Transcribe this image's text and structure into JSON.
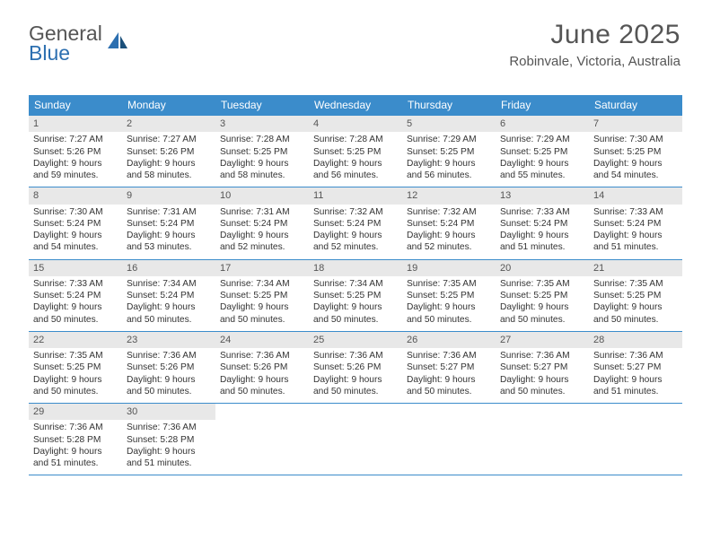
{
  "logo": {
    "word1": "General",
    "word2": "Blue"
  },
  "title": "June 2025",
  "location": "Robinvale, Victoria, Australia",
  "colors": {
    "header_bg": "#3b8ccb",
    "header_text": "#ffffff",
    "daynum_bg": "#e8e8e8",
    "border": "#3b8ccb",
    "text": "#333333",
    "logo_gray": "#555555",
    "logo_blue": "#2c6fb0"
  },
  "dayNames": [
    "Sunday",
    "Monday",
    "Tuesday",
    "Wednesday",
    "Thursday",
    "Friday",
    "Saturday"
  ],
  "weeks": [
    [
      {
        "n": "1",
        "sr": "7:27 AM",
        "ss": "5:26 PM",
        "dl": "9 hours and 59 minutes."
      },
      {
        "n": "2",
        "sr": "7:27 AM",
        "ss": "5:26 PM",
        "dl": "9 hours and 58 minutes."
      },
      {
        "n": "3",
        "sr": "7:28 AM",
        "ss": "5:25 PM",
        "dl": "9 hours and 58 minutes."
      },
      {
        "n": "4",
        "sr": "7:28 AM",
        "ss": "5:25 PM",
        "dl": "9 hours and 56 minutes."
      },
      {
        "n": "5",
        "sr": "7:29 AM",
        "ss": "5:25 PM",
        "dl": "9 hours and 56 minutes."
      },
      {
        "n": "6",
        "sr": "7:29 AM",
        "ss": "5:25 PM",
        "dl": "9 hours and 55 minutes."
      },
      {
        "n": "7",
        "sr": "7:30 AM",
        "ss": "5:25 PM",
        "dl": "9 hours and 54 minutes."
      }
    ],
    [
      {
        "n": "8",
        "sr": "7:30 AM",
        "ss": "5:24 PM",
        "dl": "9 hours and 54 minutes."
      },
      {
        "n": "9",
        "sr": "7:31 AM",
        "ss": "5:24 PM",
        "dl": "9 hours and 53 minutes."
      },
      {
        "n": "10",
        "sr": "7:31 AM",
        "ss": "5:24 PM",
        "dl": "9 hours and 52 minutes."
      },
      {
        "n": "11",
        "sr": "7:32 AM",
        "ss": "5:24 PM",
        "dl": "9 hours and 52 minutes."
      },
      {
        "n": "12",
        "sr": "7:32 AM",
        "ss": "5:24 PM",
        "dl": "9 hours and 52 minutes."
      },
      {
        "n": "13",
        "sr": "7:33 AM",
        "ss": "5:24 PM",
        "dl": "9 hours and 51 minutes."
      },
      {
        "n": "14",
        "sr": "7:33 AM",
        "ss": "5:24 PM",
        "dl": "9 hours and 51 minutes."
      }
    ],
    [
      {
        "n": "15",
        "sr": "7:33 AM",
        "ss": "5:24 PM",
        "dl": "9 hours and 50 minutes."
      },
      {
        "n": "16",
        "sr": "7:34 AM",
        "ss": "5:24 PM",
        "dl": "9 hours and 50 minutes."
      },
      {
        "n": "17",
        "sr": "7:34 AM",
        "ss": "5:25 PM",
        "dl": "9 hours and 50 minutes."
      },
      {
        "n": "18",
        "sr": "7:34 AM",
        "ss": "5:25 PM",
        "dl": "9 hours and 50 minutes."
      },
      {
        "n": "19",
        "sr": "7:35 AM",
        "ss": "5:25 PM",
        "dl": "9 hours and 50 minutes."
      },
      {
        "n": "20",
        "sr": "7:35 AM",
        "ss": "5:25 PM",
        "dl": "9 hours and 50 minutes."
      },
      {
        "n": "21",
        "sr": "7:35 AM",
        "ss": "5:25 PM",
        "dl": "9 hours and 50 minutes."
      }
    ],
    [
      {
        "n": "22",
        "sr": "7:35 AM",
        "ss": "5:25 PM",
        "dl": "9 hours and 50 minutes."
      },
      {
        "n": "23",
        "sr": "7:36 AM",
        "ss": "5:26 PM",
        "dl": "9 hours and 50 minutes."
      },
      {
        "n": "24",
        "sr": "7:36 AM",
        "ss": "5:26 PM",
        "dl": "9 hours and 50 minutes."
      },
      {
        "n": "25",
        "sr": "7:36 AM",
        "ss": "5:26 PM",
        "dl": "9 hours and 50 minutes."
      },
      {
        "n": "26",
        "sr": "7:36 AM",
        "ss": "5:27 PM",
        "dl": "9 hours and 50 minutes."
      },
      {
        "n": "27",
        "sr": "7:36 AM",
        "ss": "5:27 PM",
        "dl": "9 hours and 50 minutes."
      },
      {
        "n": "28",
        "sr": "7:36 AM",
        "ss": "5:27 PM",
        "dl": "9 hours and 51 minutes."
      }
    ],
    [
      {
        "n": "29",
        "sr": "7:36 AM",
        "ss": "5:28 PM",
        "dl": "9 hours and 51 minutes."
      },
      {
        "n": "30",
        "sr": "7:36 AM",
        "ss": "5:28 PM",
        "dl": "9 hours and 51 minutes."
      },
      {
        "n": "",
        "sr": "",
        "ss": "",
        "dl": ""
      },
      {
        "n": "",
        "sr": "",
        "ss": "",
        "dl": ""
      },
      {
        "n": "",
        "sr": "",
        "ss": "",
        "dl": ""
      },
      {
        "n": "",
        "sr": "",
        "ss": "",
        "dl": ""
      },
      {
        "n": "",
        "sr": "",
        "ss": "",
        "dl": ""
      }
    ]
  ],
  "labels": {
    "sunrise": "Sunrise: ",
    "sunset": "Sunset: ",
    "daylight": "Daylight: "
  }
}
